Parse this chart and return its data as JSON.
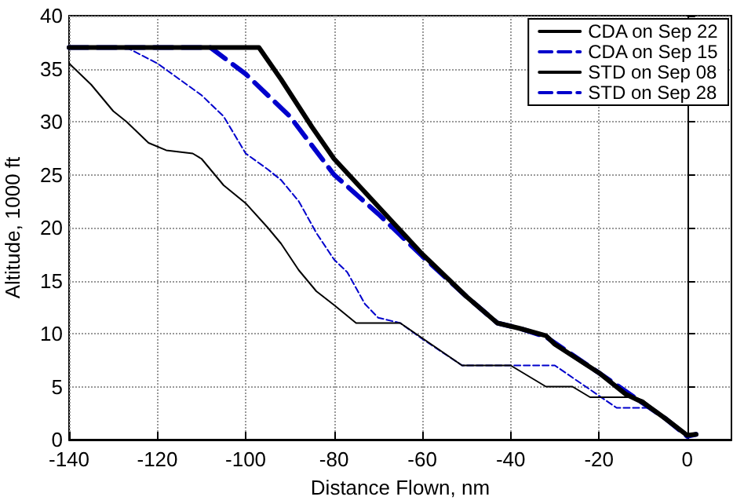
{
  "chart_data": {
    "type": "line",
    "xlabel": "Distance Flown, nm",
    "ylabel": "Altitude, 1000 ft",
    "xlim": [
      -140,
      10
    ],
    "xticks": [
      -140,
      -120,
      -100,
      -80,
      -60,
      -40,
      -20,
      0
    ],
    "ylim": [
      0,
      40
    ],
    "yticks": [
      0,
      5,
      10,
      15,
      20,
      25,
      30,
      35,
      40
    ],
    "grid": true,
    "legend": "top right",
    "marker": "none",
    "series": [
      {
        "name": "CDA on Sep 22",
        "color": "#000000",
        "line_style": "solid",
        "x": [
          -140,
          -97,
          -92,
          -85,
          -80,
          -70,
          -60,
          -50,
          -43,
          -38,
          -32,
          -30,
          -20,
          -14,
          -10,
          -5,
          0,
          2
        ],
        "values": [
          37,
          37,
          34,
          29.5,
          26.5,
          22,
          17.5,
          13.5,
          11,
          10.5,
          9.8,
          9,
          6.3,
          4.3,
          3.5,
          2,
          0.4,
          0.5
        ]
      },
      {
        "name": "CDA on Sep 15",
        "color": "#0000cc",
        "line_style": "dashed",
        "x": [
          -140,
          -108,
          -100,
          -90,
          -80,
          -70,
          -60,
          -50,
          -43,
          -38,
          -32,
          -20,
          -12,
          -5,
          0,
          2
        ],
        "values": [
          37,
          37,
          34.5,
          30.5,
          25,
          21.3,
          17.3,
          13.5,
          11,
          10.5,
          9.7,
          6.3,
          4,
          2,
          0.3,
          0.5
        ]
      },
      {
        "name": "STD on Sep 08",
        "color": "#000000",
        "line_style": "solid",
        "x": [
          -140,
          -135,
          -130,
          -127,
          -122,
          -118,
          -112,
          -110,
          -105,
          -100,
          -95,
          -92,
          -88,
          -84,
          -80,
          -75,
          -65,
          -51,
          -40,
          -32,
          -26,
          -22,
          -12,
          -10,
          -5,
          0,
          2
        ],
        "values": [
          35.5,
          33.5,
          31,
          30,
          28,
          27.3,
          27,
          26.5,
          24,
          22.3,
          20,
          18.5,
          16,
          14,
          12.7,
          11,
          11,
          7,
          7,
          5,
          5,
          4,
          4,
          3.7,
          2,
          0.4,
          0.5
        ]
      },
      {
        "name": "STD on Sep 28",
        "color": "#0000cc",
        "line_style": "dashed",
        "x": [
          -140,
          -127,
          -120,
          -115,
          -110,
          -105,
          -100,
          -95,
          -92,
          -88,
          -84,
          -80,
          -77,
          -73,
          -70,
          -65,
          -60,
          -51,
          -40,
          -30,
          -16,
          -9,
          -5,
          0,
          2
        ],
        "values": [
          37,
          37,
          35.5,
          34,
          32.5,
          30.5,
          27,
          25.5,
          24.5,
          22.5,
          19.5,
          17,
          15.8,
          12.8,
          11.5,
          11,
          9.5,
          7,
          7,
          7,
          3,
          3,
          2,
          0.4,
          0.5
        ]
      }
    ]
  }
}
